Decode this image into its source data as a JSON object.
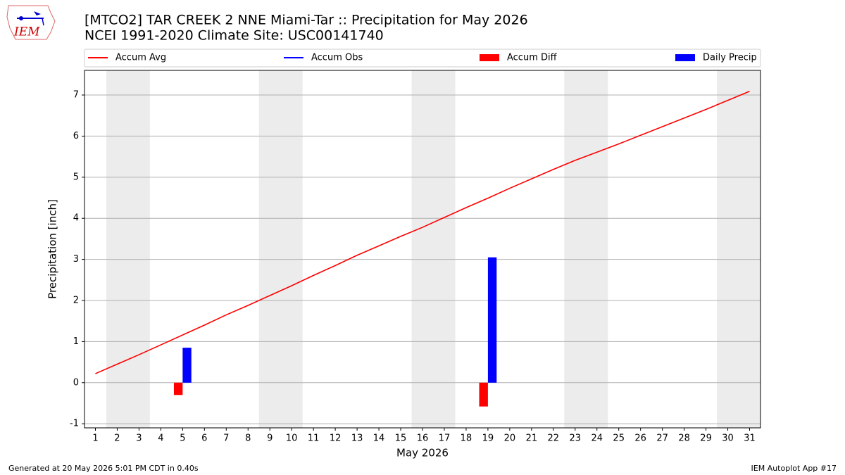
{
  "chart_data": {
    "type": "combo",
    "title": "[MTCO2] TAR CREEK 2 NNE Miami-Tar :: Precipitation for May 2026",
    "subtitle": "NCEI 1991-2020 Climate Site: USC00141740",
    "xlabel": "May 2026",
    "ylabel": "Precipitation [inch]",
    "x": [
      1,
      2,
      3,
      4,
      5,
      6,
      7,
      8,
      9,
      10,
      11,
      12,
      13,
      14,
      15,
      16,
      17,
      18,
      19,
      20,
      21,
      22,
      23,
      24,
      25,
      26,
      27,
      28,
      29,
      30,
      31
    ],
    "series": [
      {
        "name": "Accum Avg",
        "type": "line",
        "color": "#ff0000",
        "values": [
          0.22,
          0.45,
          0.68,
          0.92,
          1.16,
          1.4,
          1.65,
          1.88,
          2.12,
          2.36,
          2.61,
          2.85,
          3.1,
          3.33,
          3.56,
          3.78,
          4.02,
          4.26,
          4.49,
          4.73,
          4.96,
          5.19,
          5.41,
          5.61,
          5.81,
          6.02,
          6.23,
          6.44,
          6.65,
          6.87,
          7.09
        ]
      },
      {
        "name": "Accum Obs",
        "type": "line",
        "color": "#0000ff",
        "values": [
          null,
          null,
          null,
          null,
          null,
          null,
          null,
          null,
          null,
          null,
          null,
          null,
          null,
          null,
          null,
          null,
          null,
          null,
          null,
          null,
          null,
          null,
          null,
          null,
          null,
          null,
          null,
          null,
          null,
          null,
          null
        ]
      },
      {
        "name": "Accum Diff",
        "type": "bar",
        "color": "#ff0000",
        "values": [
          null,
          null,
          null,
          null,
          -0.3,
          null,
          null,
          null,
          null,
          null,
          null,
          null,
          null,
          null,
          null,
          null,
          null,
          null,
          -0.58,
          null,
          null,
          null,
          null,
          null,
          null,
          null,
          null,
          null,
          null,
          null,
          null
        ]
      },
      {
        "name": "Daily Precip",
        "type": "bar",
        "color": "#0000ff",
        "values": [
          null,
          null,
          null,
          null,
          0.85,
          null,
          null,
          null,
          null,
          null,
          null,
          null,
          null,
          null,
          null,
          null,
          null,
          null,
          3.05,
          null,
          null,
          null,
          null,
          null,
          null,
          null,
          null,
          null,
          null,
          null,
          null
        ]
      }
    ],
    "weekend_spans": [
      [
        1.5,
        3.5
      ],
      [
        8.5,
        10.5
      ],
      [
        15.5,
        17.5
      ],
      [
        22.5,
        24.5
      ],
      [
        29.5,
        31.5
      ]
    ],
    "xlim": [
      0.5,
      31.5
    ],
    "ylim": [
      -1.1,
      7.6
    ],
    "xticks": [
      1,
      2,
      3,
      4,
      5,
      6,
      7,
      8,
      9,
      10,
      11,
      12,
      13,
      14,
      15,
      16,
      17,
      18,
      19,
      20,
      21,
      22,
      23,
      24,
      25,
      26,
      27,
      28,
      29,
      30,
      31
    ],
    "yticks": [
      -1,
      0,
      1,
      2,
      3,
      4,
      5,
      6,
      7
    ],
    "grid": true
  },
  "logo": "IEM",
  "footer": {
    "left": "Generated at 20 May 2026 5:01 PM CDT in 0.40s",
    "right": "IEM Autoplot App #17"
  }
}
